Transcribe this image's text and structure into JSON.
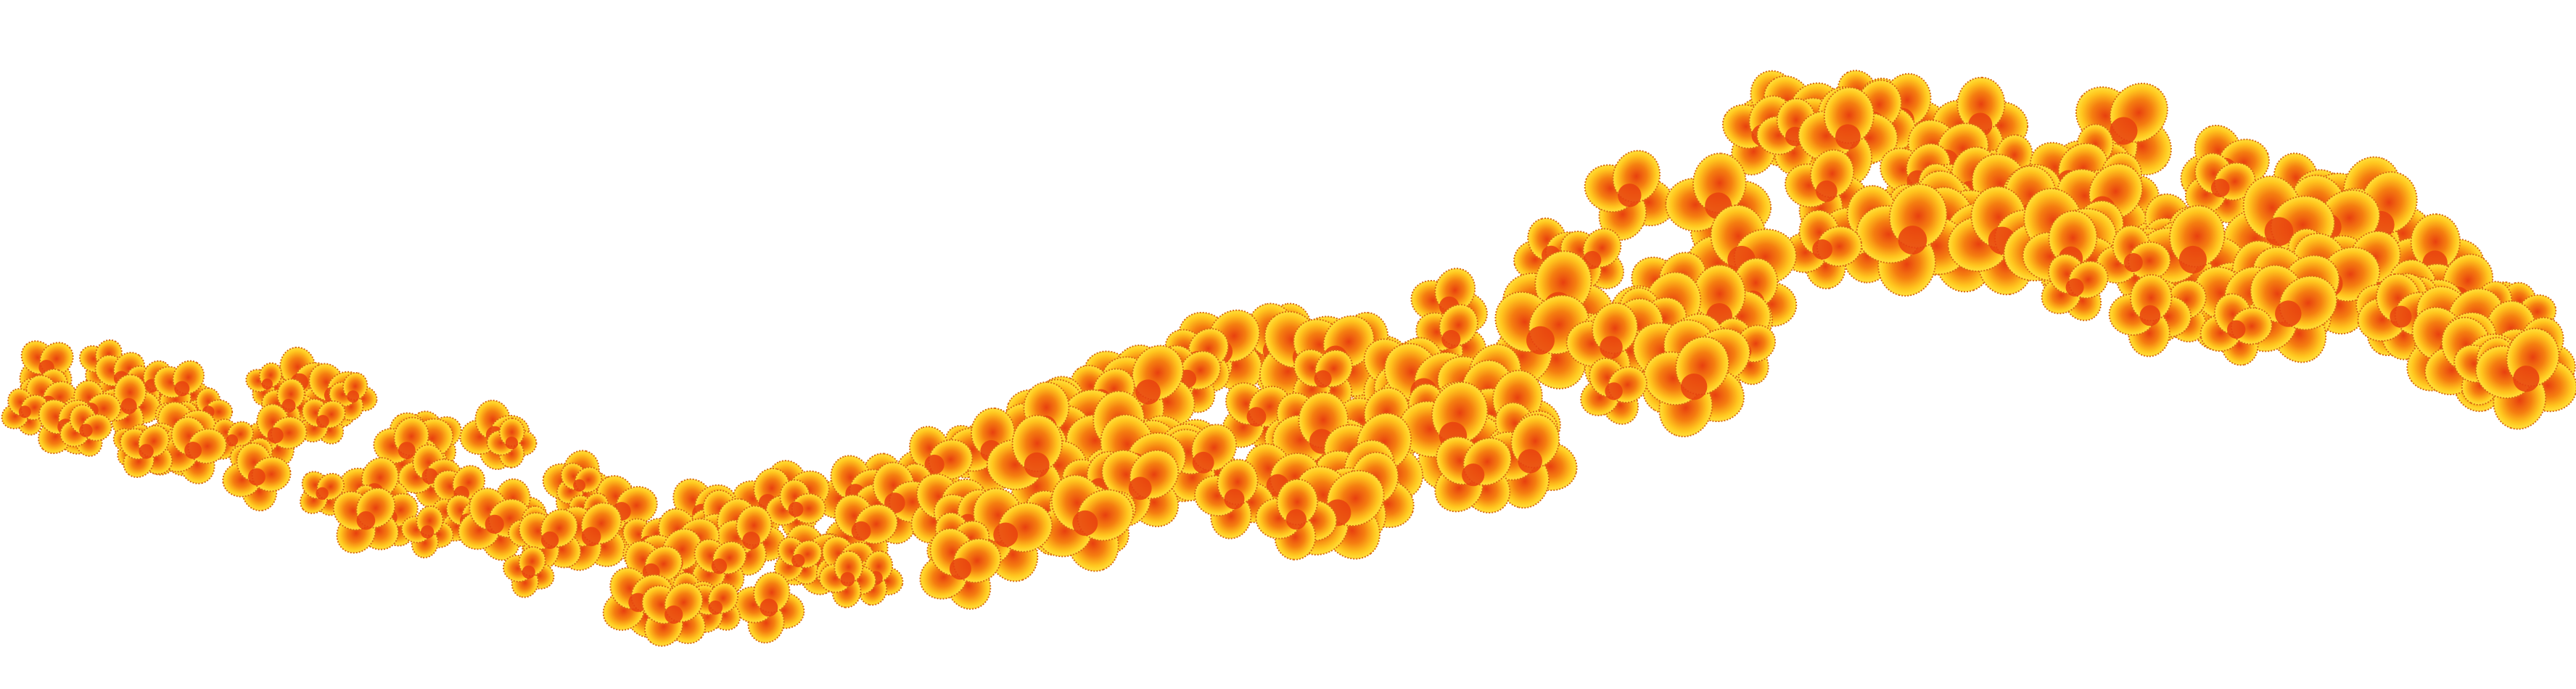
{
  "image": {
    "subject": "flower-garland",
    "background_color": "#ffffff",
    "flower_colors": {
      "center": "#e8400f",
      "mid": "#f57e10",
      "outer": "#ffc51e",
      "edge": "#ffe23a",
      "outline": "#d96a12"
    }
  }
}
